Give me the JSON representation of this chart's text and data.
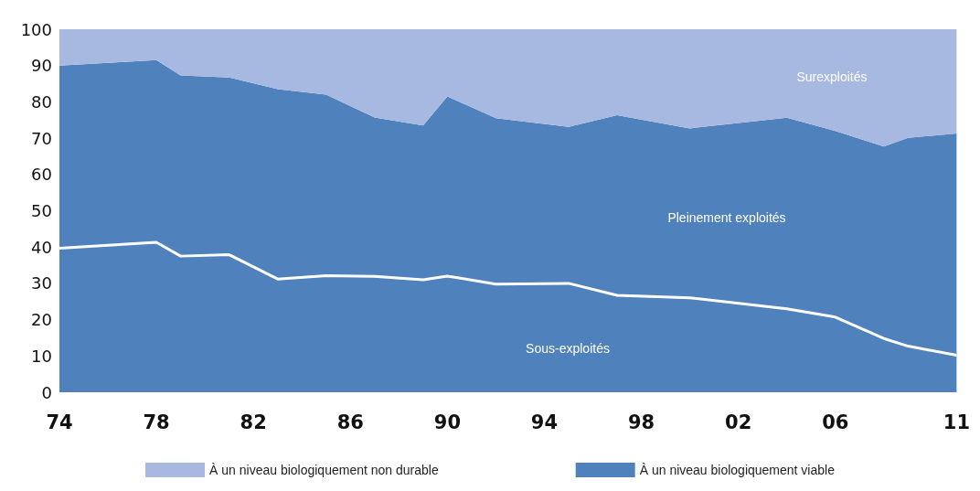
{
  "chart_data": {
    "type": "area",
    "stacked": true,
    "x": [
      1974,
      1978,
      1979,
      1981,
      1983,
      1985,
      1987,
      1989,
      1990,
      1992,
      1995,
      1997,
      2000,
      2004,
      2006,
      2008,
      2009,
      2011
    ],
    "series": [
      {
        "color": "#4f81bd",
        "values": [
          39.7,
          41.3,
          37.5,
          37.9,
          31.2,
          32.1,
          31.9,
          31,
          32,
          29.8,
          30,
          26.7,
          26,
          23,
          20.7,
          14.8,
          12.7,
          10.2
        ]
      },
      {
        "name": "À un niveau biologiquement viable",
        "color": "#4f81bd",
        "values": [
          50.3,
          50.2,
          49.8,
          48.8,
          52.3,
          49.9,
          43.8,
          42.5,
          49.5,
          45.7,
          43.1,
          49.6,
          46.7,
          52.6,
          51.3,
          52.9,
          57.4,
          61.1
        ]
      },
      {
        "name": "À un niveau biologiquement non durable",
        "color": "#a7b8e1",
        "values": [
          10,
          8.5,
          12.7,
          13.3,
          16.5,
          18,
          24.3,
          26.5,
          18.5,
          24.5,
          26.9,
          23.7,
          27.3,
          24.4,
          28,
          32.3,
          29.9,
          28.7
        ]
      }
    ],
    "xlim": [
      1974,
      2011
    ],
    "xticks": [
      {
        "value": 1974,
        "label": "74"
      },
      {
        "value": 1978,
        "label": "78"
      },
      {
        "value": 1982,
        "label": "82"
      },
      {
        "value": 1986,
        "label": "86"
      },
      {
        "value": 1990,
        "label": "90"
      },
      {
        "value": 1994,
        "label": "94"
      },
      {
        "value": 1998,
        "label": "98"
      },
      {
        "value": 2002,
        "label": "02"
      },
      {
        "value": 2006,
        "label": "06"
      },
      {
        "value": 2011,
        "label": "11"
      }
    ],
    "ylim": [
      0,
      100
    ],
    "yticks": [
      0,
      10,
      20,
      30,
      40,
      50,
      60,
      70,
      80,
      90,
      100
    ],
    "grid": false,
    "legend": "bottom",
    "annotations": [
      "Surexploités",
      "Pleinement exploités",
      "Sous-exploités"
    ]
  }
}
